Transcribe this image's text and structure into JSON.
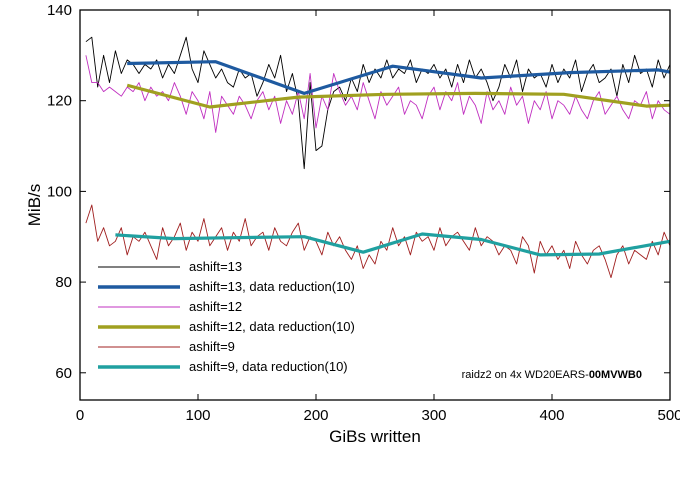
{
  "chart_data": {
    "type": "line",
    "title": "",
    "xlabel": "GiBs written",
    "ylabel": "MiB/s",
    "xlim": [
      0,
      500
    ],
    "ylim": [
      54,
      140
    ],
    "xticks": [
      0,
      100,
      200,
      300,
      400,
      500
    ],
    "yticks": [
      60,
      80,
      100,
      120,
      140
    ],
    "grid": false,
    "legend_position": "bottom-left",
    "annotation": {
      "prefix": "raidz2 on 4x WD20EARS-",
      "bold": "00MVWB0"
    },
    "series": [
      {
        "name": "ashift=13",
        "color": "#000000",
        "x": [
          5,
          10,
          15,
          20,
          25,
          30,
          35,
          40,
          45,
          50,
          55,
          60,
          65,
          70,
          75,
          80,
          85,
          90,
          95,
          100,
          105,
          110,
          115,
          120,
          125,
          130,
          135,
          140,
          145,
          150,
          155,
          160,
          165,
          170,
          175,
          180,
          185,
          190,
          195,
          200,
          205,
          210,
          215,
          220,
          225,
          230,
          235,
          240,
          245,
          250,
          255,
          260,
          265,
          270,
          275,
          280,
          285,
          290,
          295,
          300,
          305,
          310,
          315,
          320,
          325,
          330,
          335,
          340,
          345,
          350,
          355,
          360,
          365,
          370,
          375,
          380,
          385,
          390,
          395,
          400,
          405,
          410,
          415,
          420,
          425,
          430,
          435,
          440,
          445,
          450,
          455,
          460,
          465,
          470,
          475,
          480,
          485,
          490,
          495,
          500
        ],
        "y": [
          133,
          134,
          123,
          130,
          124,
          131,
          126,
          129,
          128,
          126,
          128,
          127,
          129,
          125,
          128,
          126,
          130,
          134,
          127,
          124,
          131,
          128,
          125,
          127,
          124,
          123,
          127,
          125,
          126,
          121,
          124,
          128,
          125,
          130,
          122,
          126,
          120,
          105,
          124,
          109,
          110,
          118,
          122,
          123,
          120,
          125,
          122,
          128,
          124,
          127,
          125,
          129,
          125,
          127,
          126,
          129,
          124,
          127,
          126,
          128,
          125,
          127,
          123,
          128,
          124,
          129,
          125,
          127,
          124,
          120,
          123,
          128,
          125,
          129,
          122,
          127,
          125,
          126,
          123,
          128,
          124,
          127,
          125,
          129,
          122,
          126,
          128,
          124,
          125,
          127,
          121,
          128,
          124,
          130,
          126,
          127,
          123,
          129,
          125,
          128
        ]
      },
      {
        "name": "ashift=13, data reduction(10)",
        "color": "#1e5aa0",
        "x": [
          40,
          115,
          190,
          265,
          340,
          415,
          490,
          500
        ],
        "y": [
          128.2,
          128.6,
          121.6,
          127.6,
          125,
          126.2,
          126.8,
          126.3
        ]
      },
      {
        "name": "ashift=12",
        "color": "#c030c0",
        "x": [
          5,
          10,
          15,
          20,
          25,
          30,
          35,
          40,
          45,
          50,
          55,
          60,
          65,
          70,
          75,
          80,
          85,
          90,
          95,
          100,
          105,
          110,
          115,
          120,
          125,
          130,
          135,
          140,
          145,
          150,
          155,
          160,
          165,
          170,
          175,
          180,
          185,
          190,
          195,
          200,
          205,
          210,
          215,
          220,
          225,
          230,
          235,
          240,
          245,
          250,
          255,
          260,
          265,
          270,
          275,
          280,
          285,
          290,
          295,
          300,
          305,
          310,
          315,
          320,
          325,
          330,
          335,
          340,
          345,
          350,
          355,
          360,
          365,
          370,
          375,
          380,
          385,
          390,
          395,
          400,
          405,
          410,
          415,
          420,
          425,
          430,
          435,
          440,
          445,
          450,
          455,
          460,
          465,
          470,
          475,
          480,
          485,
          490,
          495,
          500
        ],
        "y": [
          130,
          124,
          124,
          122,
          123,
          122,
          121,
          123,
          122,
          124,
          120,
          123,
          121,
          122,
          120,
          124,
          121,
          117,
          122,
          120,
          116,
          122,
          113,
          121,
          119,
          117,
          121,
          119,
          116,
          120,
          122,
          118,
          121,
          115,
          120,
          117,
          122,
          116,
          126,
          114,
          121,
          118,
          126,
          122,
          119,
          121,
          118,
          124,
          120,
          116,
          122,
          119,
          121,
          123,
          117,
          120,
          119,
          116,
          121,
          123,
          118,
          122,
          120,
          124,
          117,
          121,
          119,
          115,
          122,
          118,
          120,
          117,
          123,
          119,
          121,
          115,
          120,
          118,
          122,
          116,
          120,
          119,
          117,
          121,
          118,
          116,
          120,
          122,
          117,
          119,
          121,
          118,
          116,
          120,
          119,
          122,
          116,
          120,
          118,
          117
        ]
      },
      {
        "name": "ashift=12, data reduction(10)",
        "color": "#a0a020",
        "x": [
          40,
          110,
          185,
          260,
          335,
          410,
          480,
          500
        ],
        "y": [
          123.4,
          118.6,
          120.8,
          121.4,
          121.6,
          121.4,
          118.8,
          119
        ]
      },
      {
        "name": "ashift=9",
        "color": "#a02020",
        "x": [
          5,
          10,
          15,
          20,
          25,
          30,
          35,
          40,
          45,
          50,
          55,
          60,
          65,
          70,
          75,
          80,
          85,
          90,
          95,
          100,
          105,
          110,
          115,
          120,
          125,
          130,
          135,
          140,
          145,
          150,
          155,
          160,
          165,
          170,
          175,
          180,
          185,
          190,
          195,
          200,
          205,
          210,
          215,
          220,
          225,
          230,
          235,
          240,
          245,
          250,
          255,
          260,
          265,
          270,
          275,
          280,
          285,
          290,
          295,
          300,
          305,
          310,
          315,
          320,
          325,
          330,
          335,
          340,
          345,
          350,
          355,
          360,
          365,
          370,
          375,
          380,
          385,
          390,
          395,
          400,
          405,
          410,
          415,
          420,
          425,
          430,
          435,
          440,
          445,
          450,
          455,
          460,
          465,
          470,
          475,
          480,
          485,
          490,
          495,
          500
        ],
        "y": [
          93,
          97,
          89,
          92,
          88,
          89,
          92,
          86,
          90,
          89,
          91,
          88,
          85,
          92,
          88,
          90,
          93,
          87,
          91,
          89,
          94,
          88,
          90,
          92,
          87,
          91,
          89,
          94,
          88,
          90,
          91,
          87,
          92,
          89,
          88,
          91,
          93,
          87,
          90,
          89,
          86,
          91,
          88,
          90,
          87,
          85,
          88,
          83,
          86,
          84,
          89,
          87,
          92,
          88,
          90,
          86,
          91,
          89,
          90,
          87,
          92,
          88,
          90,
          91,
          89,
          87,
          92,
          88,
          90,
          89,
          86,
          88,
          87,
          84,
          90,
          88,
          82,
          89,
          86,
          88,
          85,
          87,
          83,
          89,
          86,
          84,
          87,
          88,
          85,
          81,
          86,
          88,
          84,
          87,
          86,
          85,
          89,
          86,
          91,
          88
        ]
      },
      {
        "name": "ashift=9, data reduction(10)",
        "color": "#20a0a0",
        "x": [
          30,
          80,
          130,
          190,
          240,
          290,
          340,
          390,
          440,
          500
        ],
        "y": [
          90.4,
          89.6,
          89.8,
          90,
          86.6,
          90.6,
          89.4,
          86,
          86.2,
          89
        ]
      }
    ]
  }
}
